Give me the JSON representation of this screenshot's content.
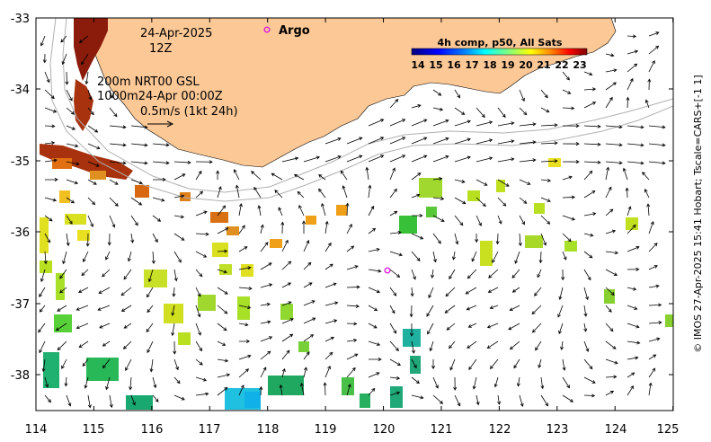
{
  "map": {
    "x_ticks": [
      "114",
      "115",
      "116",
      "117",
      "118",
      "119",
      "120",
      "121",
      "122",
      "123",
      "124",
      "125"
    ],
    "y_ticks": [
      "-33",
      "-34",
      "-35",
      "-36",
      "-37",
      "-38"
    ],
    "lon_range": [
      114,
      125
    ],
    "lat_range": [
      -38.5,
      -33
    ]
  },
  "info": {
    "date": "24-Apr-2025",
    "hour": "12Z",
    "isobath_line1": "200m  NRT00 GSL",
    "isobath_line2": "1000m24-Apr 00:00Z",
    "vector_scale": "0.5m/s (1kt 24h)"
  },
  "legend": {
    "argo_label": "Argo",
    "argo_color": "#e020e0"
  },
  "colorbar": {
    "title": "4h comp, p50, All Sats",
    "ticks": [
      "14",
      "15",
      "16",
      "17",
      "18",
      "19",
      "20",
      "21",
      "22",
      "23"
    ],
    "colors": [
      "#00007f",
      "#0000ff",
      "#007fff",
      "#00ffff",
      "#7fff7f",
      "#ffff00",
      "#ff7f00",
      "#ff0000",
      "#7f0000"
    ]
  },
  "credit": "© IMOS 27-Apr-2025 15:41 Hobart; Tscale=CARS+[-1 1]",
  "colors": {
    "land": "#fcc896",
    "isobath": "#b0b0b0"
  }
}
